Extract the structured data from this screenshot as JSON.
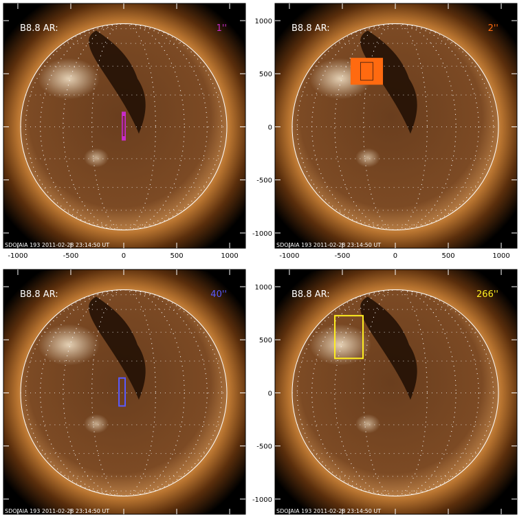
{
  "panels": [
    {
      "label": "B8.8 AR:",
      "resolution": "1''",
      "color": "#c82cc8",
      "region": {
        "x": [
          -13,
          13
        ],
        "y": [
          -123,
          136
        ]
      },
      "fill": true,
      "x_labels": true,
      "y_labels": false
    },
    {
      "label": "B8.8 AR:",
      "resolution": "2''",
      "color": "#ff6a10",
      "region": {
        "x": [
          -416,
          -123
        ],
        "y": [
          403,
          643
        ]
      },
      "fill": true,
      "x_labels": true,
      "y_labels": true
    },
    {
      "label": "B8.8 AR:",
      "resolution": "40''",
      "color": "#5a5aff",
      "region": {
        "x": [
          -45,
          13
        ],
        "y": [
          -123,
          140
        ]
      },
      "fill": false,
      "x_labels": false,
      "y_labels": false
    },
    {
      "label": "B8.8 AR:",
      "resolution": "266''",
      "color": "#ffee20",
      "region": {
        "x": [
          -571,
          -305
        ],
        "y": [
          325,
          727
        ]
      },
      "fill": false,
      "x_labels": false,
      "y_labels": true
    }
  ],
  "footer": "SDO/AIA 193  2011-02-28 23:14:50 UT",
  "xlim": [
    -1136,
    1149
  ],
  "ylim": [
    -1143,
    1162
  ],
  "xticks": [
    -1000,
    -500,
    0,
    500,
    1000
  ],
  "yticks": [
    -1000,
    -500,
    0,
    500,
    1000
  ]
}
